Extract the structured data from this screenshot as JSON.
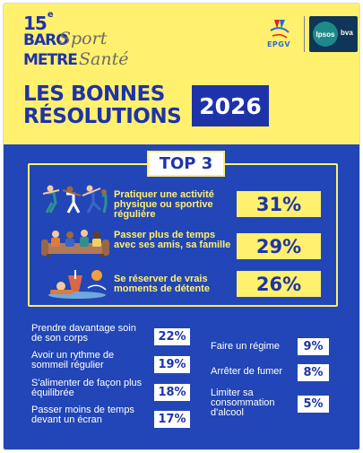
{
  "header": {
    "edition_number": "15",
    "edition_suffix": "e",
    "baro_line1": "BARO",
    "baro_line2": "METRE",
    "script_line1": "Sport",
    "script_line2": "Santé",
    "title_line1": "LES BONNES",
    "title_line2": "RÉSOLUTIONS",
    "year": "2026",
    "partner_logo_text": "EPGV",
    "ipsos_label": "Ipsos",
    "bva_label": "bva"
  },
  "top3": {
    "heading": "TOP 3",
    "items": [
      {
        "text": "Pratiquer une activité physique ou sportive régulière",
        "value": "31%",
        "icon": "people-exercising-icon"
      },
      {
        "text": "Passer plus de temps avec ses amis, sa famille",
        "value": "29%",
        "icon": "friends-on-sofa-icon"
      },
      {
        "text": "Se réserver de vrais moments de détente",
        "value": "26%",
        "icon": "relaxing-drink-icon"
      }
    ]
  },
  "others_left": [
    {
      "label": "Prendre davantage soin de son corps",
      "value": "22%"
    },
    {
      "label": "Avoir un rythme de sommeil régulier",
      "value": "19%"
    },
    {
      "label": "S'alimenter de façon plus équilibrée",
      "value": "18%"
    },
    {
      "label": "Passer moins de temps devant un écran",
      "value": "17%"
    }
  ],
  "others_right": [
    {
      "label": "Faire un régime",
      "value": "9%"
    },
    {
      "label": "Arrêter de fumer",
      "value": "8%"
    },
    {
      "label": "Limiter sa consommation d'alcool",
      "value": "5%"
    }
  ],
  "colors": {
    "yellow": "#fff06e",
    "blue": "#2246b7",
    "dark_blue": "#1f33a8",
    "white": "#ffffff"
  }
}
